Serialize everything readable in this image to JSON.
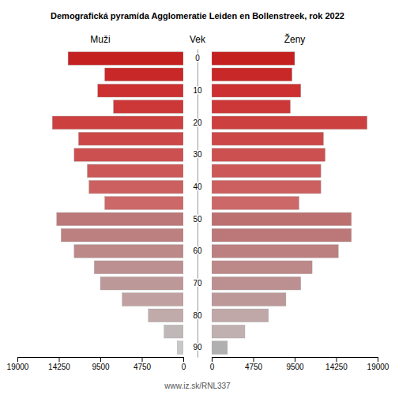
{
  "chart_data": {
    "type": "bar",
    "orientation": "horizontal",
    "title": "Demografická pyramída Agglomeratie Leiden en Bollenstreek, rok 2022",
    "ylabel": "Vek",
    "annotations": [
      "www.iz.sk/RNL337"
    ],
    "categories": [
      "90",
      null,
      "80",
      null,
      "70",
      null,
      "60",
      null,
      "50",
      null,
      "40",
      null,
      "30",
      null,
      "20",
      null,
      "10",
      null,
      "0"
    ],
    "series": [
      {
        "name": "Muži",
        "colors": [
          "#c8c8c8",
          "#c0b8b8",
          "#c0aaaa",
          "#c0a0a0",
          "#bc9898",
          "#bc9090",
          "#bc8888",
          "#bc8080",
          "#bc7878",
          "#cc6868",
          "#cc6060",
          "#cc5858",
          "#cc5050",
          "#cc4848",
          "#cc4040",
          "#cc3838",
          "#cc3030",
          "#c82828",
          "#c42020"
        ],
        "values": [
          700,
          2200,
          4000,
          7000,
          9500,
          10200,
          12500,
          14000,
          14500,
          9000,
          10800,
          11000,
          12500,
          12000,
          15000,
          8000,
          9800,
          9000,
          13200
        ]
      },
      {
        "name": "Ženy",
        "colors": [
          "#b0b0b0",
          "#c0b0b0",
          "#c0a8a8",
          "#bc9898",
          "#bc9090",
          "#bc8888",
          "#bc8080",
          "#bc7878",
          "#bc7070",
          "#cc6868",
          "#cc6060",
          "#cc5858",
          "#cc5050",
          "#cc4848",
          "#cc4040",
          "#cc3838",
          "#cc3030",
          "#c82828",
          "#c42020"
        ],
        "values": [
          1800,
          3800,
          6500,
          8500,
          10200,
          11500,
          14500,
          16000,
          16000,
          10000,
          12500,
          12500,
          13000,
          12800,
          17800,
          9000,
          10200,
          9200,
          9500
        ]
      }
    ],
    "xlim": [
      0,
      19000
    ],
    "xticks": [
      0,
      4750,
      9500,
      14250,
      19000
    ],
    "grid": false
  }
}
